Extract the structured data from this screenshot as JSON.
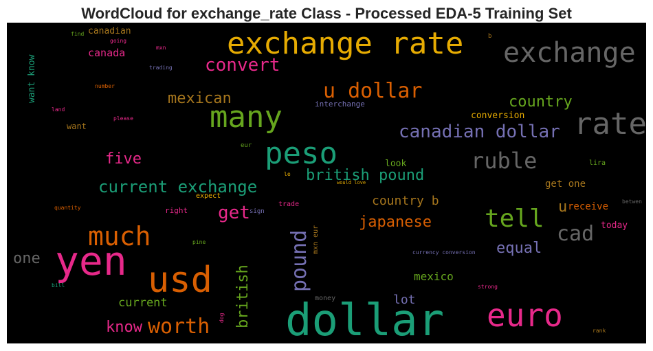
{
  "title": "WordCloud for exchange_rate Class - Processed EDA-5 Training Set",
  "words": [
    {
      "text": "exchange rate",
      "color": "#e6ab02"
    },
    {
      "text": "exchange",
      "color": "#666666"
    },
    {
      "text": "rate",
      "color": "#666666"
    },
    {
      "text": "convert",
      "color": "#e7298a"
    },
    {
      "text": "canadian",
      "color": "#a6761d"
    },
    {
      "text": "find",
      "color": "#66a61e"
    },
    {
      "text": "going",
      "color": "#e7298a"
    },
    {
      "text": "mxn",
      "color": "#e7298a"
    },
    {
      "text": "canada",
      "color": "#e7298a"
    },
    {
      "text": "trading",
      "color": "#7570b3"
    },
    {
      "text": "want know",
      "color": "#1b9e77"
    },
    {
      "text": "b",
      "color": "#a6761d"
    },
    {
      "text": "u dollar",
      "color": "#d95f02"
    },
    {
      "text": "number",
      "color": "#d95f02"
    },
    {
      "text": "mexican",
      "color": "#a6761d"
    },
    {
      "text": "many",
      "color": "#66a61e"
    },
    {
      "text": "interchange",
      "color": "#7570b3"
    },
    {
      "text": "country",
      "color": "#66a61e"
    },
    {
      "text": "conversion",
      "color": "#e6ab02"
    },
    {
      "text": "land",
      "color": "#e7298a"
    },
    {
      "text": "please",
      "color": "#e7298a"
    },
    {
      "text": "want",
      "color": "#a6761d"
    },
    {
      "text": "canadian dollar",
      "color": "#7570b3"
    },
    {
      "text": "peso",
      "color": "#1b9e77"
    },
    {
      "text": "five",
      "color": "#e7298a"
    },
    {
      "text": "eur",
      "color": "#66a61e"
    },
    {
      "text": "ruble",
      "color": "#666666"
    },
    {
      "text": "lira",
      "color": "#66a61e"
    },
    {
      "text": "look",
      "color": "#66a61e"
    },
    {
      "text": "british pound",
      "color": "#1b9e77"
    },
    {
      "text": "le",
      "color": "#e6ab02"
    },
    {
      "text": "would love",
      "color": "#e6ab02"
    },
    {
      "text": "current exchange",
      "color": "#1b9e77"
    },
    {
      "text": "expect",
      "color": "#e6ab02"
    },
    {
      "text": "get one",
      "color": "#a6761d"
    },
    {
      "text": "country b",
      "color": "#a6761d"
    },
    {
      "text": "quantity",
      "color": "#d95f02"
    },
    {
      "text": "right",
      "color": "#e7298a"
    },
    {
      "text": "get",
      "color": "#e7298a"
    },
    {
      "text": "sign",
      "color": "#7570b3"
    },
    {
      "text": "trade",
      "color": "#e7298a"
    },
    {
      "text": "tell",
      "color": "#66a61e"
    },
    {
      "text": "u",
      "color": "#a6761d"
    },
    {
      "text": "receive",
      "color": "#d95f02"
    },
    {
      "text": "betwen",
      "color": "#666666"
    },
    {
      "text": "japanese",
      "color": "#d95f02"
    },
    {
      "text": "mxn eur",
      "color": "#a6761d"
    },
    {
      "text": "today",
      "color": "#e7298a"
    },
    {
      "text": "much",
      "color": "#d95f02"
    },
    {
      "text": "pound",
      "color": "#7570b3"
    },
    {
      "text": "cad",
      "color": "#666666"
    },
    {
      "text": "pine",
      "color": "#66a61e"
    },
    {
      "text": "equal",
      "color": "#7570b3"
    },
    {
      "text": "one",
      "color": "#666666"
    },
    {
      "text": "yen",
      "color": "#e7298a"
    },
    {
      "text": "usd",
      "color": "#d95f02"
    },
    {
      "text": "currency conversion",
      "color": "#7570b3"
    },
    {
      "text": "british",
      "color": "#66a61e"
    },
    {
      "text": "mexico",
      "color": "#66a61e"
    },
    {
      "text": "bill",
      "color": "#1b9e77"
    },
    {
      "text": "strong",
      "color": "#e7298a"
    },
    {
      "text": "lot",
      "color": "#7570b3"
    },
    {
      "text": "money",
      "color": "#666666"
    },
    {
      "text": "current",
      "color": "#66a61e"
    },
    {
      "text": "dog",
      "color": "#e7298a"
    },
    {
      "text": "dollar",
      "color": "#1b9e77"
    },
    {
      "text": "euro",
      "color": "#e7298a"
    },
    {
      "text": "know",
      "color": "#e7298a"
    },
    {
      "text": "worth",
      "color": "#d95f02"
    },
    {
      "text": "rank",
      "color": "#a6761d"
    }
  ]
}
